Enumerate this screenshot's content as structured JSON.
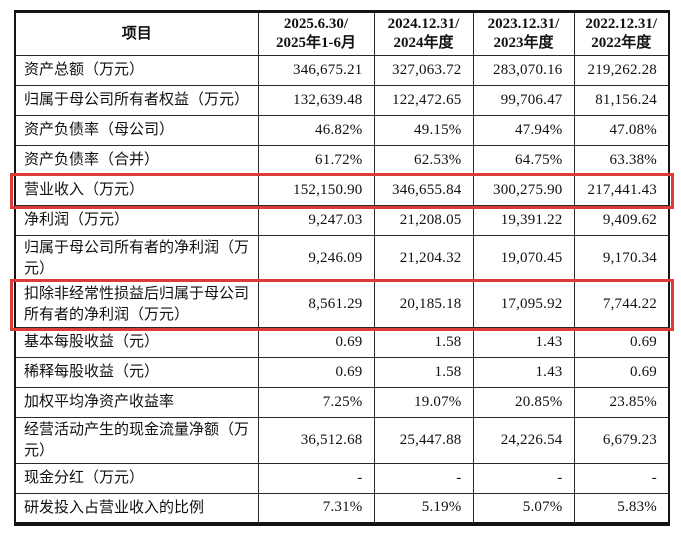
{
  "table": {
    "highlight_color": "#dd3b3b",
    "header": {
      "item_label": "项目",
      "periods": [
        {
          "line1": "2025.6.30/",
          "line2": "2025年1-6月"
        },
        {
          "line1": "2024.12.31/",
          "line2": "2024年度"
        },
        {
          "line1": "2023.12.31/",
          "line2": "2023年度"
        },
        {
          "line1": "2022.12.31/",
          "line2": "2022年度"
        }
      ]
    },
    "rows": [
      {
        "label": "资产总额（万元）",
        "values": [
          "346,675.21",
          "327,063.72",
          "283,070.16",
          "219,262.28"
        ],
        "highlight": false
      },
      {
        "label": "归属于母公司所有者权益（万元）",
        "values": [
          "132,639.48",
          "122,472.65",
          "99,706.47",
          "81,156.24"
        ],
        "highlight": false
      },
      {
        "label": "资产负债率（母公司）",
        "values": [
          "46.82%",
          "49.15%",
          "47.94%",
          "47.08%"
        ],
        "highlight": false
      },
      {
        "label": "资产负债率（合并）",
        "values": [
          "61.72%",
          "62.53%",
          "64.75%",
          "63.38%"
        ],
        "highlight": false
      },
      {
        "label": "营业收入（万元）",
        "values": [
          "152,150.90",
          "346,655.84",
          "300,275.90",
          "217,441.43"
        ],
        "highlight": true
      },
      {
        "label": "净利润（万元）",
        "values": [
          "9,247.03",
          "21,208.05",
          "19,391.22",
          "9,409.62"
        ],
        "highlight": false
      },
      {
        "label": "归属于母公司所有者的净利润（万元）",
        "values": [
          "9,246.09",
          "21,204.32",
          "19,070.45",
          "9,170.34"
        ],
        "highlight": false
      },
      {
        "label": "扣除非经常性损益后归属于母公司所有者的净利润（万元）",
        "values": [
          "8,561.29",
          "20,185.18",
          "17,095.92",
          "7,744.22"
        ],
        "highlight": true
      },
      {
        "label": "基本每股收益（元）",
        "values": [
          "0.69",
          "1.58",
          "1.43",
          "0.69"
        ],
        "highlight": false
      },
      {
        "label": "稀释每股收益（元）",
        "values": [
          "0.69",
          "1.58",
          "1.43",
          "0.69"
        ],
        "highlight": false
      },
      {
        "label": "加权平均净资产收益率",
        "values": [
          "7.25%",
          "19.07%",
          "20.85%",
          "23.85%"
        ],
        "highlight": false
      },
      {
        "label": "经营活动产生的现金流量净额（万元）",
        "values": [
          "36,512.68",
          "25,447.88",
          "24,226.54",
          "6,679.23"
        ],
        "highlight": false
      },
      {
        "label": "现金分红（万元）",
        "values": [
          "-",
          "-",
          "-",
          "-"
        ],
        "highlight": false
      },
      {
        "label": "研发投入占营业收入的比例",
        "values": [
          "7.31%",
          "5.19%",
          "5.07%",
          "5.83%"
        ],
        "highlight": false
      }
    ]
  }
}
